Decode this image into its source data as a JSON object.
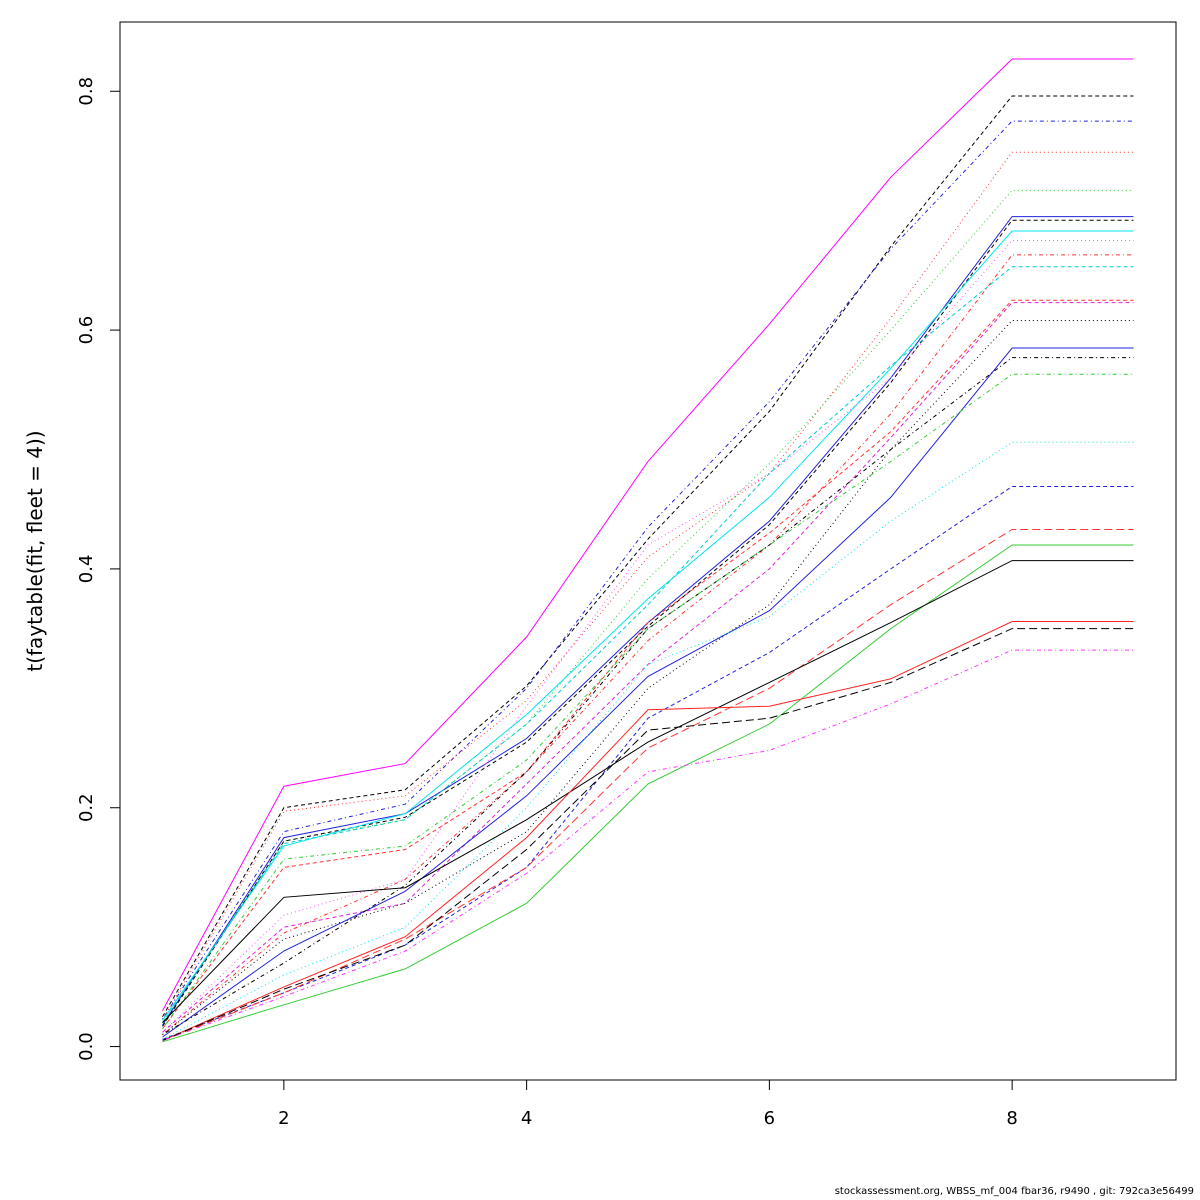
{
  "chart_data": {
    "type": "line",
    "title": "",
    "xlabel": "",
    "ylabel": "t(faytable(fit, fleet = 4))",
    "x": [
      1,
      2,
      3,
      4,
      5,
      6,
      7,
      8,
      9
    ],
    "xlim": [
      0.65,
      9.35
    ],
    "ylim": [
      -0.028,
      0.858
    ],
    "xticks": [
      "2",
      "4",
      "6",
      "8"
    ],
    "yticks": [
      "0.0",
      "0.2",
      "0.4",
      "0.6",
      "0.8"
    ],
    "grid": false,
    "legend": "none",
    "series": [
      {
        "color": "#ff00ff",
        "dash": "solid",
        "values": [
          0.03,
          0.218,
          0.237,
          0.343,
          0.49,
          0.605,
          0.728,
          0.827,
          0.827
        ]
      },
      {
        "color": "#000000",
        "dash": "dashed",
        "values": [
          0.025,
          0.2,
          0.215,
          0.302,
          0.425,
          0.532,
          0.67,
          0.796,
          0.796
        ]
      },
      {
        "color": "#2222dd",
        "dash": "dotdash",
        "values": [
          0.023,
          0.18,
          0.203,
          0.3,
          0.435,
          0.54,
          0.668,
          0.775,
          0.775
        ]
      },
      {
        "color": "#ff3333",
        "dash": "dotted",
        "values": [
          0.022,
          0.197,
          0.21,
          0.29,
          0.41,
          0.48,
          0.61,
          0.749,
          0.749
        ]
      },
      {
        "color": "#33cc33",
        "dash": "dotted",
        "values": [
          0.02,
          0.172,
          0.19,
          0.27,
          0.392,
          0.488,
          0.6,
          0.717,
          0.717
        ]
      },
      {
        "color": "#2222dd",
        "dash": "solid",
        "values": [
          0.018,
          0.175,
          0.195,
          0.258,
          0.355,
          0.44,
          0.56,
          0.695,
          0.695
        ]
      },
      {
        "color": "#000000",
        "dash": "dashed",
        "values": [
          0.017,
          0.172,
          0.192,
          0.255,
          0.352,
          0.437,
          0.556,
          0.692,
          0.692
        ]
      },
      {
        "color": "#00e5ee",
        "dash": "solid",
        "values": [
          0.022,
          0.168,
          0.195,
          0.278,
          0.375,
          0.46,
          0.568,
          0.683,
          0.683
        ]
      },
      {
        "color": "#ff55ff",
        "dash": "dotted",
        "values": [
          0.012,
          0.11,
          0.14,
          0.285,
          0.42,
          0.48,
          0.56,
          0.675,
          0.675
        ]
      },
      {
        "color": "#ff3333",
        "dash": "dotdash",
        "values": [
          0.01,
          0.095,
          0.14,
          0.23,
          0.34,
          0.42,
          0.53,
          0.663,
          0.663
        ]
      },
      {
        "color": "#00cccc",
        "dash": "dashed",
        "values": [
          0.02,
          0.17,
          0.19,
          0.27,
          0.37,
          0.48,
          0.57,
          0.653,
          0.653
        ]
      },
      {
        "color": "#ff3333",
        "dash": "dashed",
        "values": [
          0.015,
          0.15,
          0.165,
          0.23,
          0.355,
          0.43,
          0.515,
          0.625,
          0.625
        ]
      },
      {
        "color": "#dd22dd",
        "dash": "dashed",
        "values": [
          0.012,
          0.1,
          0.12,
          0.22,
          0.32,
          0.4,
          0.51,
          0.623,
          0.623
        ]
      },
      {
        "color": "#000000",
        "dash": "dotted",
        "values": [
          0.01,
          0.09,
          0.12,
          0.18,
          0.3,
          0.37,
          0.5,
          0.608,
          0.608
        ]
      },
      {
        "color": "#2222dd",
        "dash": "solid",
        "values": [
          0.008,
          0.08,
          0.13,
          0.21,
          0.31,
          0.365,
          0.46,
          0.585,
          0.585
        ]
      },
      {
        "color": "#000000",
        "dash": "dotdash",
        "values": [
          0.01,
          0.07,
          0.135,
          0.23,
          0.35,
          0.42,
          0.5,
          0.577,
          0.577
        ]
      },
      {
        "color": "#33cc33",
        "dash": "dotdash",
        "values": [
          0.015,
          0.157,
          0.168,
          0.24,
          0.35,
          0.42,
          0.49,
          0.563,
          0.563
        ]
      },
      {
        "color": "#00e5ee",
        "dash": "dotted",
        "values": [
          0.006,
          0.06,
          0.1,
          0.2,
          0.32,
          0.36,
          0.44,
          0.506,
          0.506
        ]
      },
      {
        "color": "#2222dd",
        "dash": "dashed",
        "values": [
          0.006,
          0.045,
          0.085,
          0.15,
          0.275,
          0.33,
          0.4,
          0.469,
          0.469
        ]
      },
      {
        "color": "#ff3333",
        "dash": "longdash",
        "values": [
          0.005,
          0.045,
          0.09,
          0.15,
          0.25,
          0.3,
          0.37,
          0.433,
          0.433
        ]
      },
      {
        "color": "#33cc33",
        "dash": "solid",
        "values": [
          0.004,
          0.035,
          0.065,
          0.12,
          0.22,
          0.27,
          0.35,
          0.42,
          0.42
        ]
      },
      {
        "color": "#000000",
        "dash": "solid",
        "values": [
          0.02,
          0.125,
          0.133,
          0.19,
          0.255,
          0.305,
          0.355,
          0.407,
          0.407
        ]
      },
      {
        "color": "#ff2222",
        "dash": "solid",
        "values": [
          0.005,
          0.05,
          0.092,
          0.175,
          0.282,
          0.285,
          0.308,
          0.356,
          0.356
        ]
      },
      {
        "color": "#000000",
        "dash": "longdash",
        "values": [
          0.005,
          0.048,
          0.085,
          0.165,
          0.265,
          0.275,
          0.305,
          0.35,
          0.35
        ]
      },
      {
        "color": "#ff33ff",
        "dash": "dotdash",
        "values": [
          0.005,
          0.042,
          0.08,
          0.145,
          0.23,
          0.248,
          0.287,
          0.332,
          0.332
        ]
      }
    ]
  },
  "footer": {
    "text": "stockassessment.org, WBSS_mf_004 fbar36, r9490 , git: 792ca3e56499"
  }
}
